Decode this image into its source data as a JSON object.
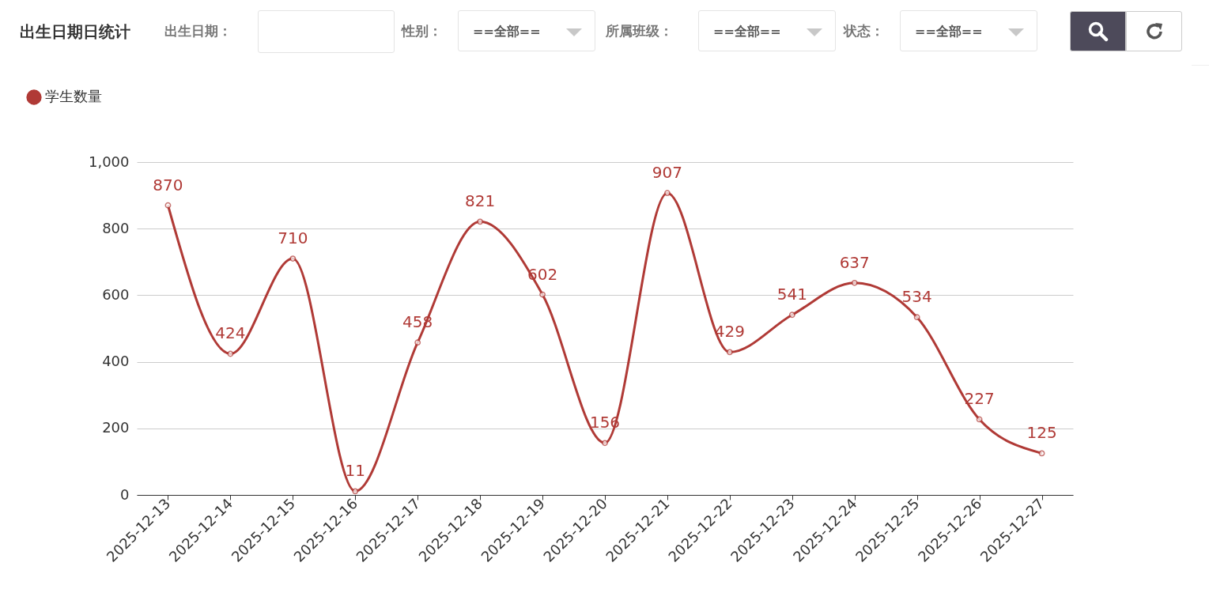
{
  "chart_data": {
    "type": "line",
    "title": "出生日期日统计",
    "annotations": [
      "出生日期：",
      "性别：",
      "==全部==",
      "所属班级：",
      "==全部==",
      "状态：",
      "==全部=="
    ],
    "categories": [
      "2025-12-13",
      "2025-12-14",
      "2025-12-15",
      "2025-12-16",
      "2025-12-17",
      "2025-12-18",
      "2025-12-19",
      "2025-12-20",
      "2025-12-21",
      "2025-12-22",
      "2025-12-23",
      "2025-12-24",
      "2025-12-25",
      "2025-12-26",
      "2025-12-27"
    ],
    "series": [
      {
        "name": "学生数量",
        "color": "#b03a36",
        "values": [
          870,
          424,
          710,
          11,
          458,
          821,
          602,
          156,
          907,
          429,
          541,
          637,
          534,
          227,
          125
        ]
      }
    ],
    "ylim": [
      0,
      1000
    ],
    "yticks": [
      0,
      200,
      400,
      600,
      800,
      {
        "value": 1000,
        "label": "1,000"
      }
    ],
    "grid": "y",
    "legend": "top left",
    "marker": "circle",
    "data_labels": true
  }
}
